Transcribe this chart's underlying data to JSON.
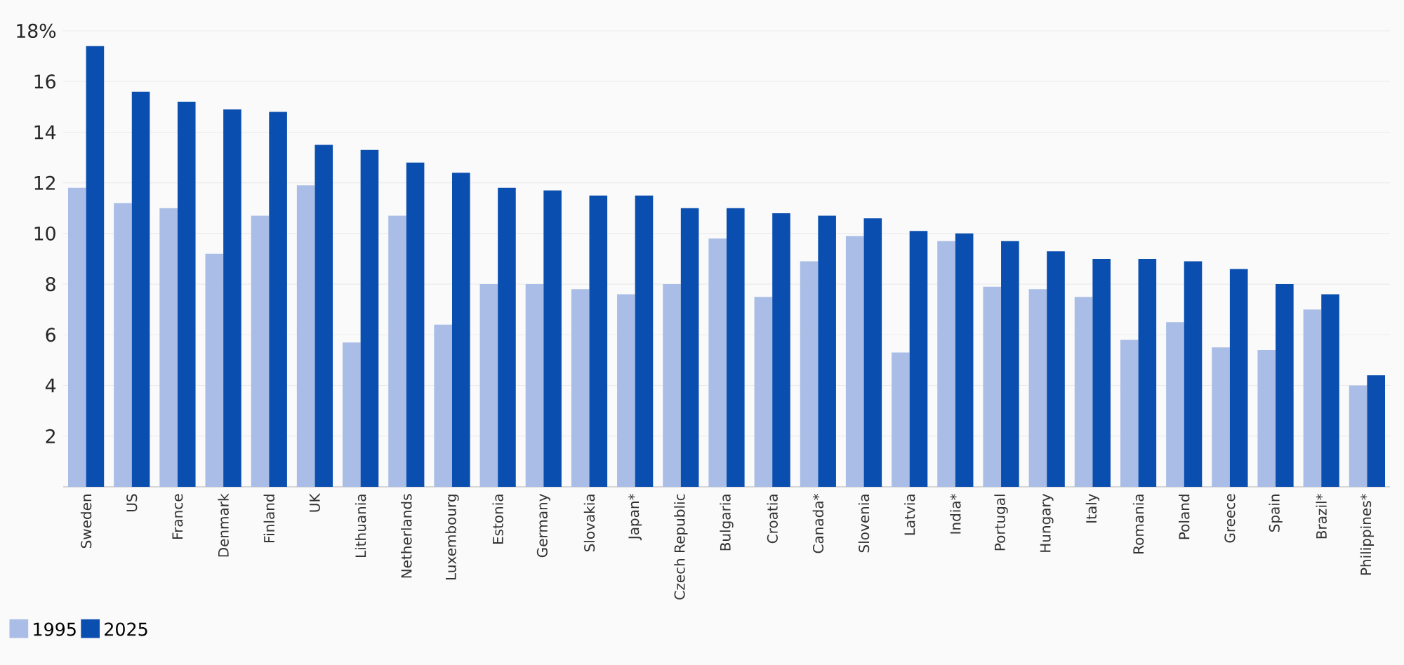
{
  "chart_data": {
    "type": "bar",
    "categories": [
      "Sweden",
      "US",
      "France",
      "Denmark",
      "Finland",
      "UK",
      "Lithuania",
      "Netherlands",
      "Luxembourg",
      "Estonia",
      "Germany",
      "Slovakia",
      "Japan*",
      "Czech Republic",
      "Bulgaria",
      "Croatia",
      "Canada*",
      "Slovenia",
      "Latvia",
      "India*",
      "Portugal",
      "Hungary",
      "Italy",
      "Romania",
      "Poland",
      "Greece",
      "Spain",
      "Brazil*",
      "Philippines*"
    ],
    "series": [
      {
        "name": "1995",
        "color": "#a9bde6",
        "values": [
          11.8,
          11.2,
          11.0,
          9.2,
          10.7,
          11.9,
          5.7,
          10.7,
          6.4,
          8.0,
          8.0,
          7.8,
          7.6,
          8.0,
          9.8,
          7.5,
          8.9,
          9.9,
          5.3,
          9.7,
          7.9,
          7.8,
          7.5,
          5.8,
          6.5,
          5.5,
          5.4,
          7.0,
          4.0
        ]
      },
      {
        "name": "2025",
        "color": "#0a4eb0",
        "values": [
          17.4,
          15.6,
          15.2,
          14.9,
          14.8,
          13.5,
          13.3,
          12.8,
          12.4,
          11.8,
          11.7,
          11.5,
          11.5,
          11.0,
          11.0,
          10.8,
          10.7,
          10.6,
          10.1,
          10.0,
          9.7,
          9.3,
          9.0,
          9.0,
          8.9,
          8.6,
          8.0,
          7.6,
          4.4
        ]
      }
    ],
    "ylim": [
      0,
      18
    ],
    "yticks": [
      2,
      4,
      6,
      8,
      10,
      12,
      14,
      16,
      {
        "value": 18,
        "label": "18%"
      }
    ],
    "grid": "y",
    "legend": "bottom left"
  }
}
